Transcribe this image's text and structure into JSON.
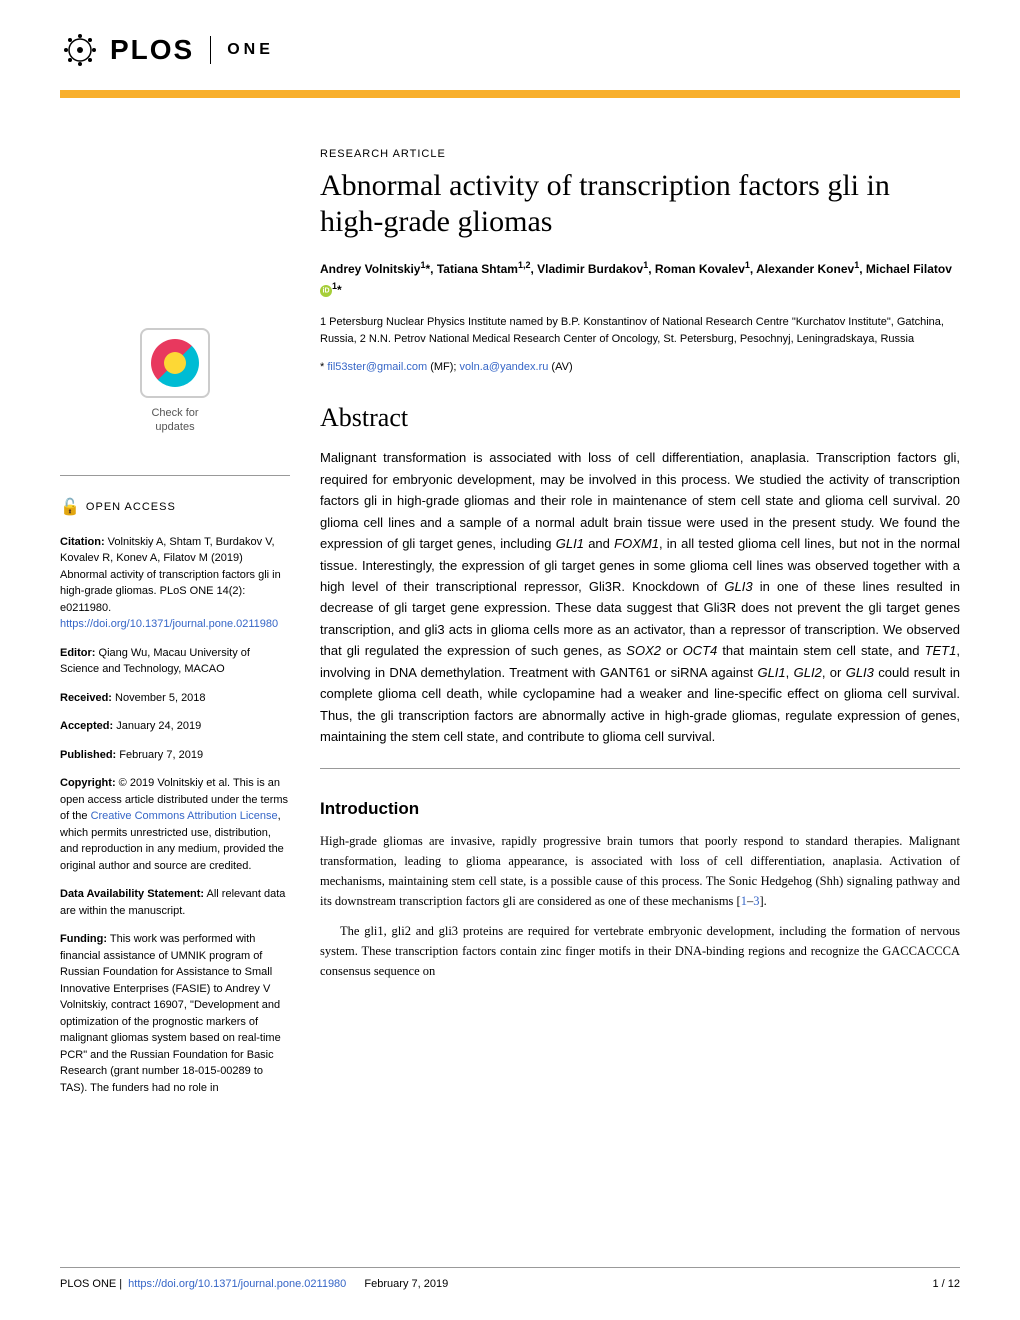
{
  "header": {
    "logo_text": "PLOS",
    "journal": "ONE"
  },
  "article": {
    "type": "RESEARCH ARTICLE",
    "title": "Abnormal activity of transcription factors gli in high-grade gliomas",
    "authors_html": "Andrey Volnitskiy<sup>1</sup>*, Tatiana Shtam<sup>1,2</sup>, Vladimir Burdakov<sup>1</sup>, Roman Kovalev<sup>1</sup>, Alexander Konev<sup>1</sup>, Michael Filatov",
    "authors_suffix": "<sup>1</sup>*",
    "affiliations": "1 Petersburg Nuclear Physics Institute named by B.P. Konstantinov of National Research Centre \"Kurchatov Institute\", Gatchina, Russia, 2 N.N. Petrov National Medical Research Center of Oncology, St. Petersburg, Pesochnyj, Leningradskaya, Russia",
    "correspondence_prefix": "* ",
    "email1": "fil53ster@gmail.com",
    "email1_suffix": " (MF); ",
    "email2": "voln.a@yandex.ru",
    "email2_suffix": " (AV)"
  },
  "abstract": {
    "heading": "Abstract",
    "text": "Malignant transformation is associated with loss of cell differentiation, anaplasia. Transcription factors gli, required for embryonic development, may be involved in this process. We studied the activity of transcription factors gli in high-grade gliomas and their role in maintenance of stem cell state and glioma cell survival. 20 glioma cell lines and a sample of a normal adult brain tissue were used in the present study. We found the expression of gli target genes, including GLI1 and FOXM1, in all tested glioma cell lines, but not in the normal tissue. Interestingly, the expression of gli target genes in some glioma cell lines was observed together with a high level of their transcriptional repressor, Gli3R. Knockdown of GLI3 in one of these lines resulted in decrease of gli target gene expression. These data suggest that Gli3R does not prevent the gli target genes transcription, and gli3 acts in glioma cells more as an activator, than a repressor of transcription. We observed that gli regulated the expression of such genes, as SOX2 or OCT4 that maintain stem cell state, and TET1, involving in DNA demethylation. Treatment with GANT61 or siRNA against GLI1, GLI2, or GLI3 could result in complete glioma cell death, while cyclopamine had a weaker and line-specific effect on glioma cell survival. Thus, the gli transcription factors are abnormally active in high-grade gliomas, regulate expression of genes, maintaining the stem cell state, and contribute to glioma cell survival."
  },
  "introduction": {
    "heading": "Introduction",
    "p1": "High-grade gliomas are invasive, rapidly progressive brain tumors that poorly respond to standard therapies. Malignant transformation, leading to glioma appearance, is associated with loss of cell differentiation, anaplasia. Activation of mechanisms, maintaining stem cell state, is a possible cause of this process. The Sonic Hedgehog (Shh) signaling pathway and its downstream transcription factors gli are considered as one of these mechanisms [",
    "ref1": "1",
    "ref_dash": "–",
    "ref2": "3",
    "p1_end": "].",
    "p2": "The gli1, gli2 and gli3 proteins are required for vertebrate embryonic development, including the formation of nervous system. These transcription factors contain zinc finger motifs in their DNA-binding regions and recognize the GACCACCCA consensus sequence on"
  },
  "sidebar": {
    "check_line1": "Check for",
    "check_line2": "updates",
    "open_access": "OPEN ACCESS",
    "citation_label": "Citation:",
    "citation_text": " Volnitskiy A, Shtam T, Burdakov V, Kovalev R, Konev A, Filatov M (2019) Abnormal activity of transcription factors gli in high-grade gliomas. PLoS ONE 14(2): e0211980. ",
    "citation_link": "https://doi.org/10.1371/journal.pone.0211980",
    "editor_label": "Editor:",
    "editor_text": " Qiang Wu, Macau University of Science and Technology, MACAO",
    "received_label": "Received:",
    "received_text": " November 5, 2018",
    "accepted_label": "Accepted:",
    "accepted_text": " January 24, 2019",
    "published_label": "Published:",
    "published_text": " February 7, 2019",
    "copyright_label": "Copyright:",
    "copyright_text1": " © 2019 Volnitskiy et al. This is an open access article distributed under the terms of the ",
    "copyright_link": "Creative Commons Attribution License",
    "copyright_text2": ", which permits unrestricted use, distribution, and reproduction in any medium, provided the original author and source are credited.",
    "data_label": "Data Availability Statement:",
    "data_text": " All relevant data are within the manuscript.",
    "funding_label": "Funding:",
    "funding_text": " This work was performed with financial assistance of UMNIK program of Russian Foundation for Assistance to Small Innovative Enterprises (FASIE) to Andrey V Volnitskiy, contract 16907, \"Development and optimization of the prognostic markers of malignant gliomas system based on real-time PCR\" and the Russian Foundation for Basic Research (grant number 18-015-00289 to TAS). The funders had no role in"
  },
  "footer": {
    "journal": "PLOS ONE | ",
    "doi": "https://doi.org/10.1371/journal.pone.0211980",
    "date": "February 7, 2019",
    "page": "1 / 12"
  },
  "colors": {
    "accent_orange": "#f8af2c",
    "link_blue": "#3666c7",
    "orcid_green": "#a6ce39"
  }
}
